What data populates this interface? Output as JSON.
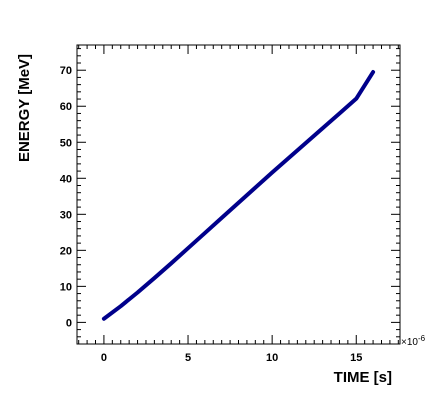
{
  "chart_data": {
    "type": "line",
    "title": "",
    "xlabel": "TIME [s]",
    "ylabel": "ENERGY [MeV]",
    "x_multiplier_label": "×10",
    "x_multiplier_exponent": "-6",
    "xlim": [
      -1.6,
      17.6
    ],
    "ylim": [
      -6,
      77
    ],
    "x_ticks": [
      0,
      5,
      10,
      15
    ],
    "y_ticks": [
      0,
      10,
      20,
      30,
      40,
      50,
      60,
      70
    ],
    "x_tick_labels": [
      "0",
      "5",
      "10",
      "15"
    ],
    "y_tick_labels": [
      "0",
      "10",
      "20",
      "30",
      "40",
      "50",
      "60",
      "70"
    ],
    "grid": false,
    "series": [
      {
        "color": "#00008b",
        "x": [
          0,
          1,
          2,
          3,
          4,
          5,
          6,
          7,
          8,
          9,
          10,
          11,
          12,
          13,
          14,
          15,
          16
        ],
        "y": [
          1,
          4.5,
          8.3,
          12.3,
          16.4,
          20.6,
          24.8,
          29.0,
          33.2,
          37.4,
          41.6,
          45.7,
          49.8,
          53.9,
          58.0,
          62.1,
          69.5
        ]
      }
    ]
  }
}
